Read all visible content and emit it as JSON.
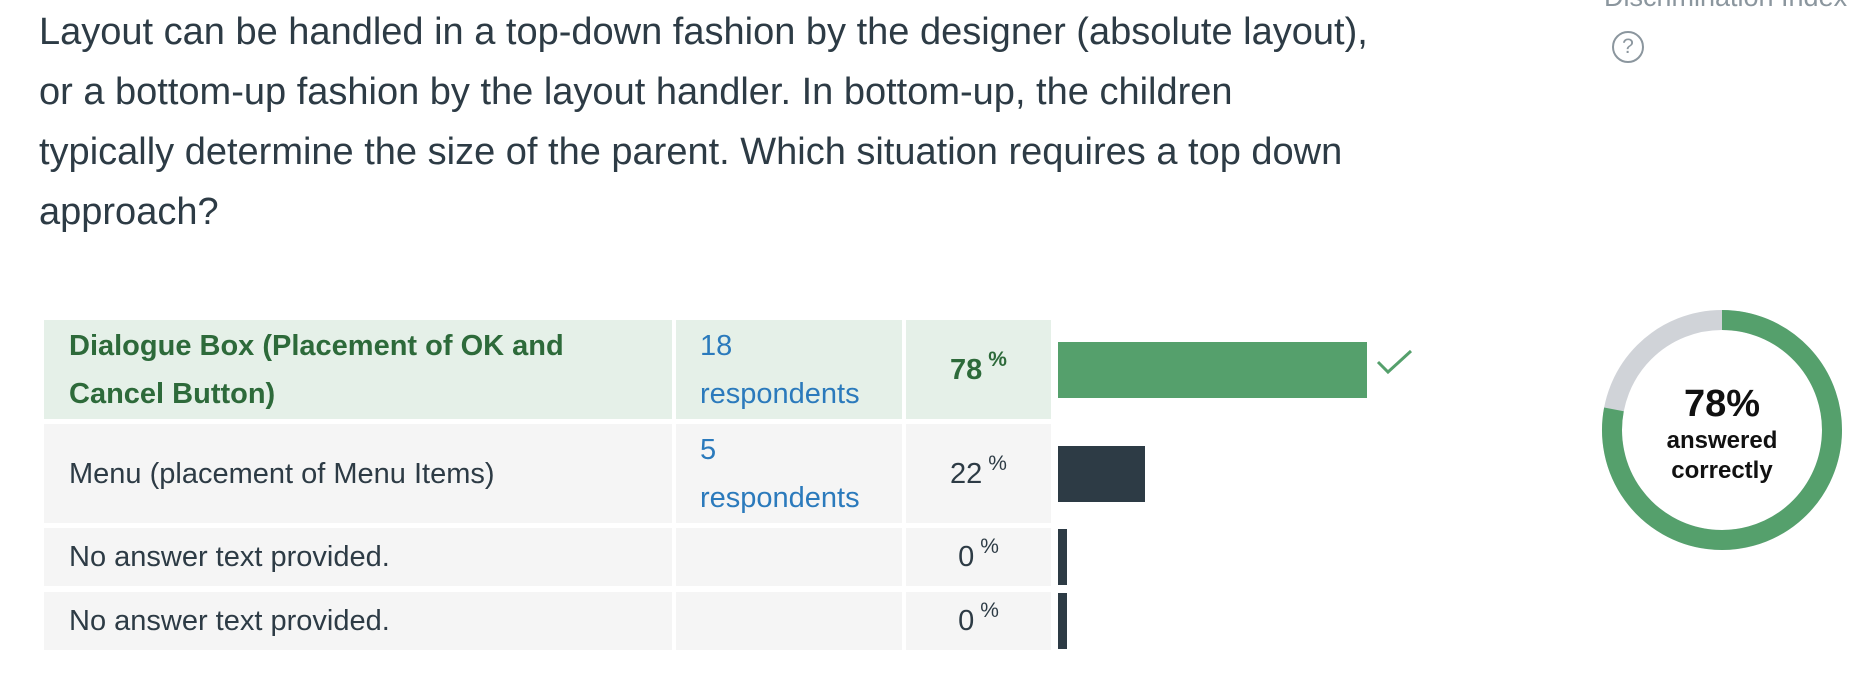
{
  "question": "Layout can be handled in a top-down fashion by the designer (absolute layout), or a bottom-up fashion by the layout handler. In bottom-up, the children typically determine the size of the parent. Which situation requires a top down approach?",
  "side_header": "Discrimination Index",
  "help_icon": "?",
  "percent_unit": "%",
  "respondents_unit": "respondents",
  "answers": [
    {
      "text": "Dialogue Box (Placement of OK and Cancel Button)",
      "respondents": 18,
      "percent": 78,
      "correct": true
    },
    {
      "text": "Menu (placement of Menu Items)",
      "respondents": 5,
      "percent": 22,
      "correct": false
    },
    {
      "text": "No answer text provided.",
      "percent": 0,
      "correct": false
    },
    {
      "text": "No answer text provided.",
      "percent": 0,
      "correct": false
    }
  ],
  "donut": {
    "value": 78,
    "label": "78%",
    "caption": "answered correctly"
  }
}
